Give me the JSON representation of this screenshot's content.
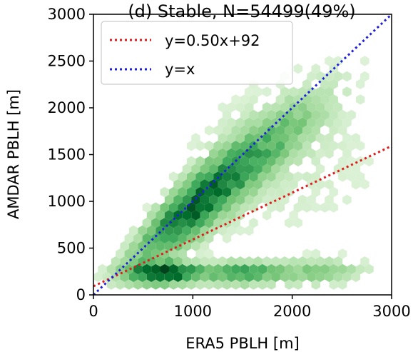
{
  "chart_data": {
    "type": "hexbin",
    "title": "(d) Stable, N=54499(49%)",
    "xlabel": "ERA5 PBLH [m]",
    "ylabel": "AMDAR PBLH [m]",
    "xlim": [
      0,
      3000
    ],
    "ylim": [
      0,
      3000
    ],
    "x_ticks": [
      "0",
      "1000",
      "2000",
      "3000"
    ],
    "y_ticks": [
      "0",
      "500",
      "1000",
      "1500",
      "2000",
      "2500",
      "3000"
    ],
    "x_tick_values": [
      0,
      1000,
      2000,
      3000
    ],
    "y_tick_values": [
      0,
      500,
      1000,
      1500,
      2000,
      2500,
      3000
    ],
    "colormap": "Greens",
    "density_modes": [
      {
        "x": 700,
        "y": 220,
        "weight": 1.0
      },
      {
        "x": 900,
        "y": 650,
        "weight": 0.7
      },
      {
        "x": 1300,
        "y": 1200,
        "weight": 0.4
      },
      {
        "x": 1500,
        "y": 230,
        "weight": 0.5
      }
    ],
    "lines": [
      {
        "name": "y=0.50x+92",
        "slope": 0.5,
        "intercept": 92,
        "color": "#e41a1c",
        "style": "dotted"
      },
      {
        "name": "y=x",
        "slope": 1.0,
        "intercept": 0,
        "color": "#1f1fe0",
        "style": "dotted"
      }
    ],
    "legend_position": "top-left",
    "grid": false
  }
}
